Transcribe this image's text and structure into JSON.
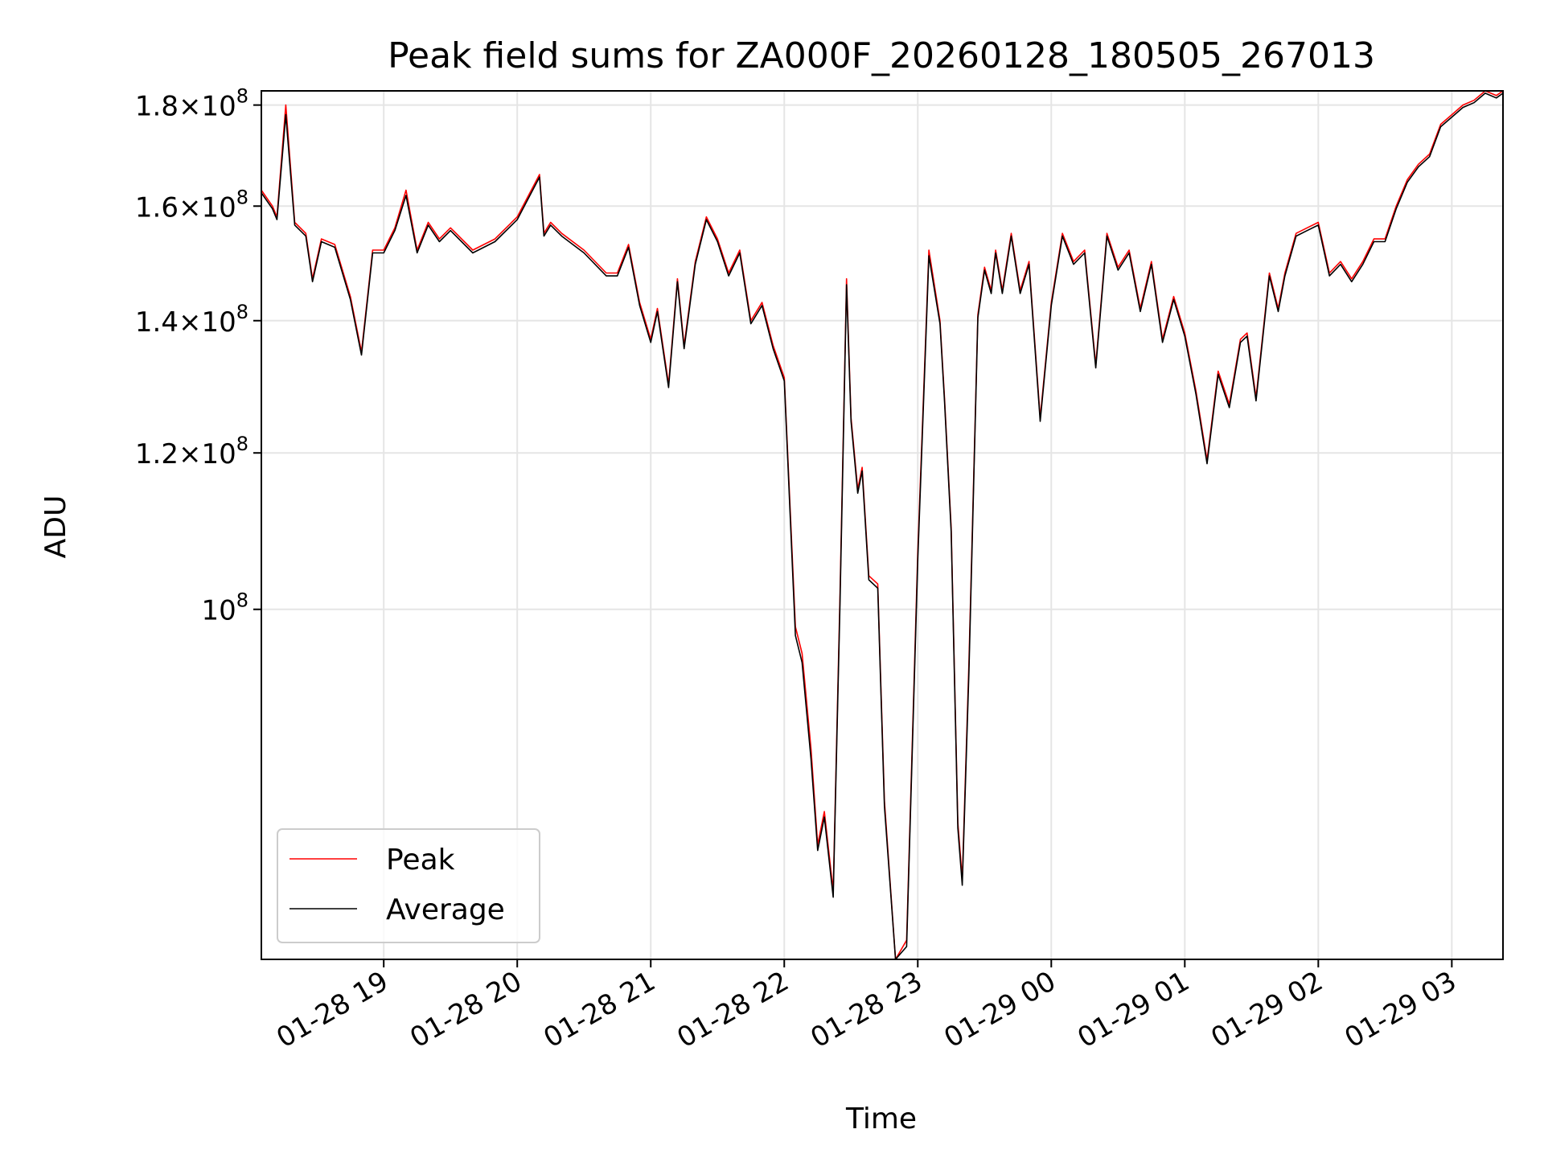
{
  "chart_data": {
    "type": "line",
    "title": "Peak field sums for ZA000F_20260128_180505_267013",
    "xlabel": "Time",
    "ylabel": "ADU",
    "yscale": "log",
    "xlim": [
      "2026-01-28 18:05",
      "2026-01-29 03:23"
    ],
    "ylim": [
      66500000,
      183000000
    ],
    "grid": true,
    "legend": "lower-left",
    "x_ticks": [
      "01-28 19",
      "01-28 20",
      "01-28 21",
      "01-28 22",
      "01-28 23",
      "01-29 00",
      "01-29 01",
      "01-29 02",
      "01-29 03"
    ],
    "y_ticks": [
      {
        "value": 100000000,
        "mantissa": "",
        "exponent": "8"
      },
      {
        "value": 120000000,
        "mantissa": "1.2",
        "exponent": "8"
      },
      {
        "value": 140000000,
        "mantissa": "1.4",
        "exponent": "8"
      },
      {
        "value": 160000000,
        "mantissa": "1.6",
        "exponent": "8"
      },
      {
        "value": 180000000,
        "mantissa": "1.8",
        "exponent": "8"
      }
    ],
    "x": [
      "2026-01-28 18:05",
      "2026-01-28 18:10",
      "2026-01-28 18:12",
      "2026-01-28 18:16",
      "2026-01-28 18:20",
      "2026-01-28 18:25",
      "2026-01-28 18:28",
      "2026-01-28 18:32",
      "2026-01-28 18:38",
      "2026-01-28 18:45",
      "2026-01-28 18:50",
      "2026-01-28 18:55",
      "2026-01-28 19:00",
      "2026-01-28 19:05",
      "2026-01-28 19:10",
      "2026-01-28 19:15",
      "2026-01-28 19:20",
      "2026-01-28 19:25",
      "2026-01-28 19:30",
      "2026-01-28 19:40",
      "2026-01-28 19:50",
      "2026-01-28 20:00",
      "2026-01-28 20:10",
      "2026-01-28 20:12",
      "2026-01-28 20:15",
      "2026-01-28 20:20",
      "2026-01-28 20:30",
      "2026-01-28 20:40",
      "2026-01-28 20:45",
      "2026-01-28 20:50",
      "2026-01-28 20:55",
      "2026-01-28 21:00",
      "2026-01-28 21:03",
      "2026-01-28 21:08",
      "2026-01-28 21:12",
      "2026-01-28 21:15",
      "2026-01-28 21:20",
      "2026-01-28 21:25",
      "2026-01-28 21:30",
      "2026-01-28 21:35",
      "2026-01-28 21:40",
      "2026-01-28 21:45",
      "2026-01-28 21:50",
      "2026-01-28 21:55",
      "2026-01-28 22:00",
      "2026-01-28 22:05",
      "2026-01-28 22:08",
      "2026-01-28 22:12",
      "2026-01-28 22:15",
      "2026-01-28 22:18",
      "2026-01-28 22:22",
      "2026-01-28 22:25",
      "2026-01-28 22:28",
      "2026-01-28 22:30",
      "2026-01-28 22:33",
      "2026-01-28 22:35",
      "2026-01-28 22:38",
      "2026-01-28 22:42",
      "2026-01-28 22:45",
      "2026-01-28 22:50",
      "2026-01-28 22:55",
      "2026-01-28 23:00",
      "2026-01-28 23:05",
      "2026-01-28 23:10",
      "2026-01-28 23:12",
      "2026-01-28 23:15",
      "2026-01-28 23:18",
      "2026-01-28 23:20",
      "2026-01-28 23:23",
      "2026-01-28 23:27",
      "2026-01-28 23:30",
      "2026-01-28 23:33",
      "2026-01-28 23:35",
      "2026-01-28 23:38",
      "2026-01-28 23:42",
      "2026-01-28 23:46",
      "2026-01-28 23:50",
      "2026-01-28 23:55",
      "2026-01-29 00:00",
      "2026-01-29 00:05",
      "2026-01-29 00:10",
      "2026-01-29 00:15",
      "2026-01-29 00:20",
      "2026-01-29 00:25",
      "2026-01-29 00:30",
      "2026-01-29 00:35",
      "2026-01-29 00:40",
      "2026-01-29 00:45",
      "2026-01-29 00:50",
      "2026-01-29 00:55",
      "2026-01-29 01:00",
      "2026-01-29 01:05",
      "2026-01-29 01:10",
      "2026-01-29 01:15",
      "2026-01-29 01:20",
      "2026-01-29 01:25",
      "2026-01-29 01:28",
      "2026-01-29 01:32",
      "2026-01-29 01:38",
      "2026-01-29 01:42",
      "2026-01-29 01:45",
      "2026-01-29 01:50",
      "2026-01-29 01:55",
      "2026-01-29 02:00",
      "2026-01-29 02:05",
      "2026-01-29 02:10",
      "2026-01-29 02:15",
      "2026-01-29 02:20",
      "2026-01-29 02:25",
      "2026-01-29 02:30",
      "2026-01-29 02:35",
      "2026-01-29 02:40",
      "2026-01-29 02:45",
      "2026-01-29 02:50",
      "2026-01-29 02:55",
      "2026-01-29 03:00",
      "2026-01-29 03:05",
      "2026-01-29 03:10",
      "2026-01-29 03:15",
      "2026-01-29 03:20",
      "2026-01-29 03:23"
    ],
    "series": [
      {
        "name": "Peak",
        "color": "#ff0000",
        "values": [
          163000000,
          160000000,
          158000000,
          180000000,
          157000000,
          155000000,
          147000000,
          154000000,
          153000000,
          144000000,
          135000000,
          152000000,
          152000000,
          156000000,
          163000000,
          152000000,
          157000000,
          154000000,
          156000000,
          152000000,
          154000000,
          158000000,
          166000000,
          155000000,
          157000000,
          155000000,
          152000000,
          148000000,
          148000000,
          153000000,
          143000000,
          137000000,
          142000000,
          130000000,
          147000000,
          136000000,
          150000000,
          158000000,
          154000000,
          148000000,
          152000000,
          140000000,
          143000000,
          136000000,
          131000000,
          98000000,
          95000000,
          85000000,
          76000000,
          79000000,
          72000000,
          101000000,
          147000000,
          125000000,
          115000000,
          118000000,
          104000000,
          103000000,
          80000000,
          66500000,
          68000000,
          107000000,
          152000000,
          140000000,
          128000000,
          110000000,
          78000000,
          73000000,
          94000000,
          141000000,
          149000000,
          145000000,
          152000000,
          145000000,
          155000000,
          145000000,
          150000000,
          125000000,
          143000000,
          155000000,
          150000000,
          152000000,
          133000000,
          155000000,
          149000000,
          152000000,
          142000000,
          150000000,
          137000000,
          144000000,
          138000000,
          129000000,
          119000000,
          132000000,
          127000000,
          137000000,
          138000000,
          128000000,
          148000000,
          142000000,
          148000000,
          155000000,
          156000000,
          157000000,
          148000000,
          150000000,
          147000000,
          150000000,
          154000000,
          154000000,
          160000000,
          165000000,
          168000000,
          170000000,
          176000000,
          178000000,
          180000000,
          181000000,
          183000000,
          182000000,
          183000000
        ]
      },
      {
        "name": "Average",
        "color": "#000000",
        "values": [
          162500000,
          159500000,
          157500000,
          178000000,
          156500000,
          154500000,
          146500000,
          153500000,
          152500000,
          143500000,
          134500000,
          151500000,
          151500000,
          155500000,
          162000000,
          151500000,
          156500000,
          153500000,
          155500000,
          151500000,
          153500000,
          157500000,
          165500000,
          154500000,
          156500000,
          154500000,
          151500000,
          147500000,
          147500000,
          152500000,
          142500000,
          136500000,
          141500000,
          129500000,
          146500000,
          135500000,
          149500000,
          157500000,
          153500000,
          147500000,
          151500000,
          139500000,
          142500000,
          135500000,
          130500000,
          97000000,
          94000000,
          84000000,
          75500000,
          78500000,
          71500000,
          100000000,
          146000000,
          124500000,
          114500000,
          117500000,
          103500000,
          102500000,
          79500000,
          66500000,
          67500000,
          106000000,
          151000000,
          139500000,
          127500000,
          109500000,
          77500000,
          72500000,
          93000000,
          140500000,
          148500000,
          144500000,
          151500000,
          144500000,
          154500000,
          144500000,
          149500000,
          124500000,
          142500000,
          154500000,
          149500000,
          151500000,
          132500000,
          154500000,
          148500000,
          151500000,
          141500000,
          149500000,
          136500000,
          143500000,
          137500000,
          128500000,
          118500000,
          131500000,
          126500000,
          136500000,
          137500000,
          127500000,
          147500000,
          141500000,
          147500000,
          154500000,
          155500000,
          156500000,
          147500000,
          149500000,
          146500000,
          149500000,
          153500000,
          153500000,
          159500000,
          164500000,
          167500000,
          169500000,
          175500000,
          177500000,
          179500000,
          180500000,
          182500000,
          181500000,
          182500000
        ]
      }
    ]
  }
}
